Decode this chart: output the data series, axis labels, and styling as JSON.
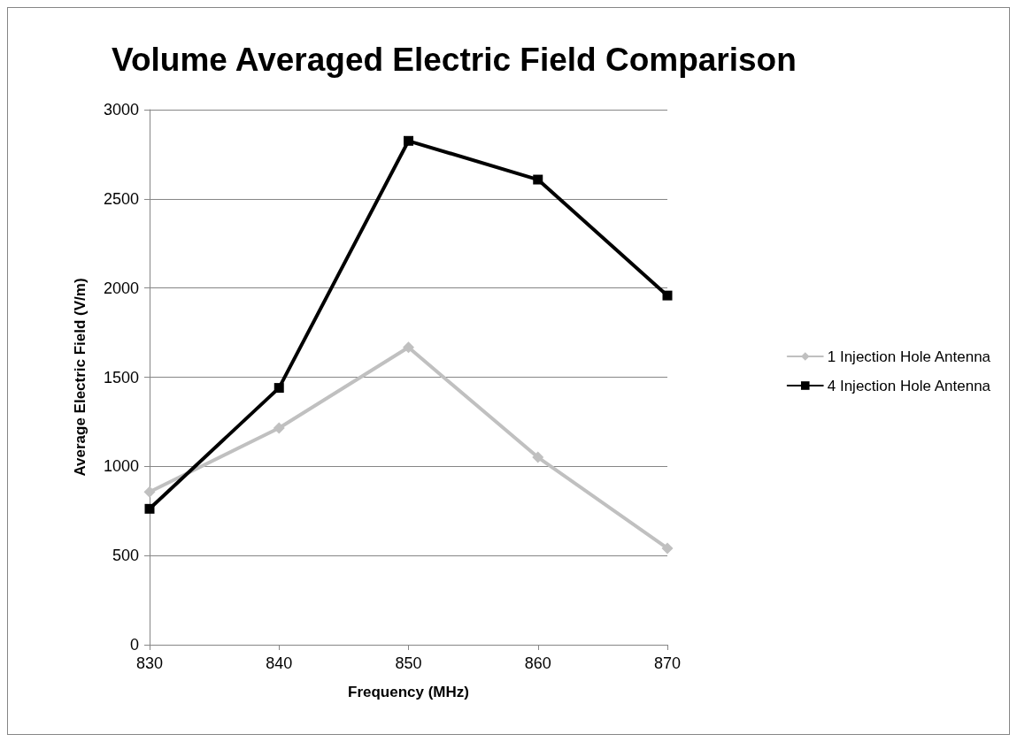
{
  "chart_data": {
    "type": "line",
    "title": "Volume Averaged Electric Field Comparison",
    "xlabel": "Frequency (MHz)",
    "ylabel": "Average Electric Field (V/m)",
    "categories": [
      "830",
      "840",
      "850",
      "860",
      "870"
    ],
    "series": [
      {
        "name": "1 Injection Hole Antenna",
        "color": "#c0c0c0",
        "marker": "diamond",
        "values": [
          857,
          1215,
          1667,
          1051,
          541
        ]
      },
      {
        "name": "4 Injection Hole Antenna",
        "color": "#000000",
        "marker": "square",
        "values": [
          762,
          1440,
          2825,
          2608,
          1958
        ]
      }
    ],
    "ylim": [
      0,
      3000
    ],
    "yticks": [
      0,
      500,
      1000,
      1500,
      2000,
      2500,
      3000
    ],
    "grid": "y",
    "legend": "right",
    "line_style": "solid"
  }
}
